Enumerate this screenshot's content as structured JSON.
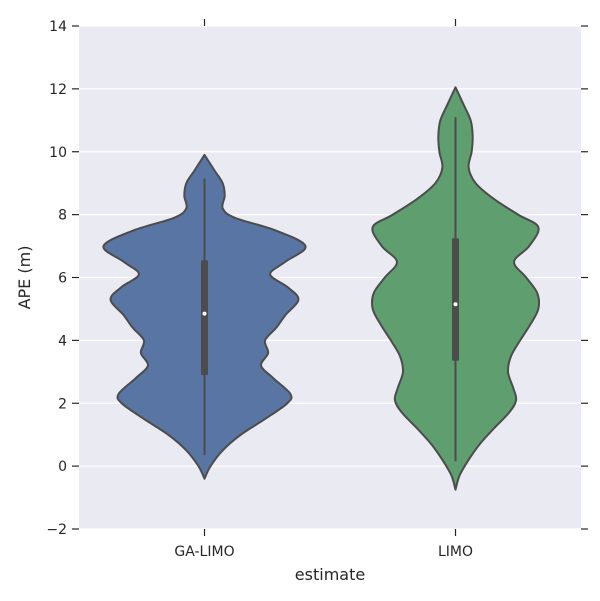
{
  "chart_data": {
    "type": "violin",
    "title": "",
    "xlabel": "estimate",
    "ylabel": "APE (m)",
    "ylim": [
      -2,
      14
    ],
    "yticks": [
      -2,
      0,
      2,
      4,
      6,
      8,
      10,
      12,
      14
    ],
    "grid": true,
    "background": "#EAEAF2",
    "categories": [
      "GA-LIMO",
      "LIMO"
    ],
    "series": [
      {
        "category": "GA-LIMO",
        "color": "#5975A4",
        "median": 4.85,
        "q1": 2.9,
        "q3": 6.55,
        "whisker_low": 0.35,
        "whisker_high": 9.15,
        "density": [
          [
            -0.4,
            0.0
          ],
          [
            0.0,
            0.06
          ],
          [
            0.5,
            0.18
          ],
          [
            1.0,
            0.36
          ],
          [
            1.5,
            0.6
          ],
          [
            2.0,
            0.82
          ],
          [
            2.3,
            0.85
          ],
          [
            2.8,
            0.68
          ],
          [
            3.2,
            0.56
          ],
          [
            3.6,
            0.63
          ],
          [
            4.0,
            0.6
          ],
          [
            4.4,
            0.71
          ],
          [
            4.8,
            0.8
          ],
          [
            5.3,
            0.93
          ],
          [
            5.7,
            0.82
          ],
          [
            6.1,
            0.65
          ],
          [
            6.5,
            0.8
          ],
          [
            7.0,
            1.0
          ],
          [
            7.5,
            0.7
          ],
          [
            7.9,
            0.3
          ],
          [
            8.2,
            0.18
          ],
          [
            8.6,
            0.2
          ],
          [
            9.0,
            0.18
          ],
          [
            9.4,
            0.1
          ],
          [
            9.9,
            0.0
          ]
        ]
      },
      {
        "category": "LIMO",
        "color": "#5F9E6E",
        "median": 5.15,
        "q1": 3.35,
        "q3": 7.25,
        "whisker_low": 0.15,
        "whisker_high": 11.1,
        "density": [
          [
            -0.75,
            0.0
          ],
          [
            -0.3,
            0.04
          ],
          [
            0.2,
            0.13
          ],
          [
            0.7,
            0.24
          ],
          [
            1.2,
            0.38
          ],
          [
            1.7,
            0.53
          ],
          [
            2.1,
            0.6
          ],
          [
            2.5,
            0.57
          ],
          [
            3.0,
            0.52
          ],
          [
            3.5,
            0.55
          ],
          [
            4.0,
            0.64
          ],
          [
            4.5,
            0.74
          ],
          [
            5.0,
            0.82
          ],
          [
            5.5,
            0.81
          ],
          [
            6.0,
            0.7
          ],
          [
            6.5,
            0.58
          ],
          [
            7.0,
            0.73
          ],
          [
            7.6,
            0.82
          ],
          [
            8.0,
            0.62
          ],
          [
            8.5,
            0.38
          ],
          [
            9.0,
            0.2
          ],
          [
            9.5,
            0.13
          ],
          [
            10.0,
            0.16
          ],
          [
            10.5,
            0.17
          ],
          [
            11.0,
            0.15
          ],
          [
            11.5,
            0.08
          ],
          [
            12.05,
            0.0
          ]
        ]
      }
    ]
  }
}
